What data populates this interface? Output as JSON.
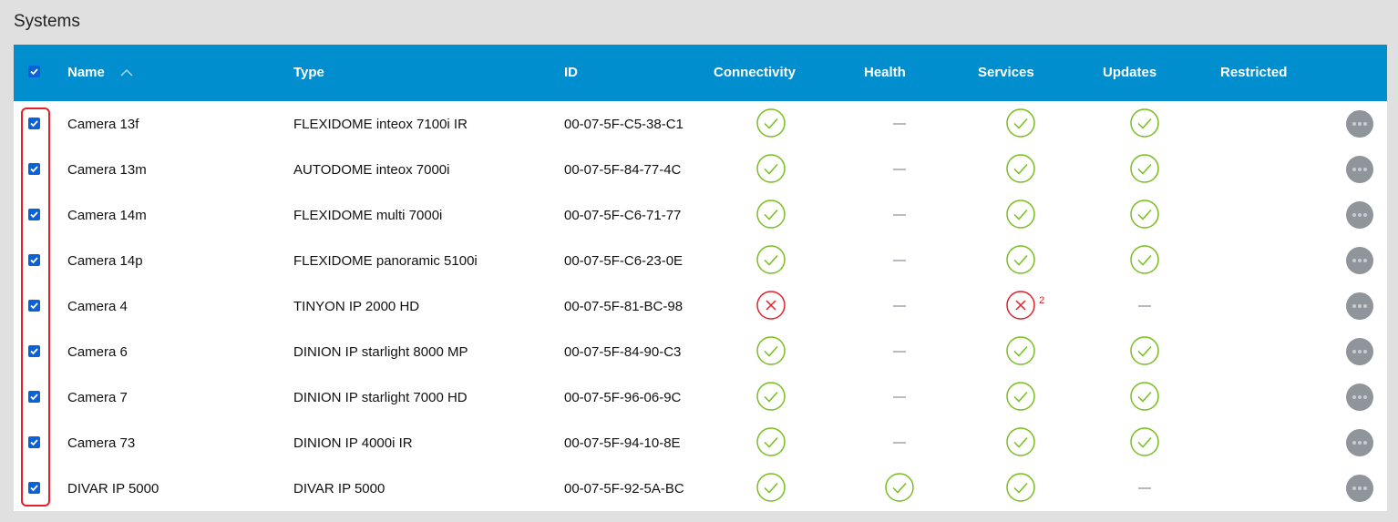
{
  "title": "Systems",
  "header": {
    "name": "Name",
    "type": "Type",
    "id": "ID",
    "connectivity": "Connectivity",
    "health": "Health",
    "services": "Services",
    "updates": "Updates",
    "restricted": "Restricted",
    "sort": "ascending",
    "select_all": true
  },
  "colors": {
    "header": "#008ecf",
    "ok": "#78be20",
    "error": "#e3202a"
  },
  "rows": [
    {
      "name": "Camera 13f",
      "type": "FLEXIDOME inteox 7100i IR",
      "id": "00-07-5F-C5-38-C1",
      "connectivity": "ok",
      "health": "none",
      "services": "ok",
      "updates": "ok",
      "checked": true
    },
    {
      "name": "Camera 13m",
      "type": "AUTODOME inteox 7000i",
      "id": "00-07-5F-84-77-4C",
      "connectivity": "ok",
      "health": "none",
      "services": "ok",
      "updates": "ok",
      "checked": true
    },
    {
      "name": "Camera 14m",
      "type": "FLEXIDOME multi 7000i",
      "id": "00-07-5F-C6-71-77",
      "connectivity": "ok",
      "health": "none",
      "services": "ok",
      "updates": "ok",
      "checked": true
    },
    {
      "name": "Camera 14p",
      "type": "FLEXIDOME panoramic 5100i",
      "id": "00-07-5F-C6-23-0E",
      "connectivity": "ok",
      "health": "none",
      "services": "ok",
      "updates": "ok",
      "checked": true
    },
    {
      "name": "Camera 4",
      "type": "TINYON IP 2000 HD",
      "id": "00-07-5F-81-BC-98",
      "connectivity": "error",
      "health": "none",
      "services": "error",
      "services_count": "2",
      "updates": "none",
      "checked": true
    },
    {
      "name": "Camera 6",
      "type": "DINION IP starlight 8000 MP",
      "id": "00-07-5F-84-90-C3",
      "connectivity": "ok",
      "health": "none",
      "services": "ok",
      "updates": "ok",
      "checked": true
    },
    {
      "name": "Camera 7",
      "type": "DINION IP starlight 7000 HD",
      "id": "00-07-5F-96-06-9C",
      "connectivity": "ok",
      "health": "none",
      "services": "ok",
      "updates": "ok",
      "checked": true
    },
    {
      "name": "Camera 73",
      "type": "DINION IP 4000i IR",
      "id": "00-07-5F-94-10-8E",
      "connectivity": "ok",
      "health": "none",
      "services": "ok",
      "updates": "ok",
      "checked": true
    },
    {
      "name": "DIVAR IP 5000",
      "type": "DIVAR IP 5000",
      "id": "00-07-5F-92-5A-BC",
      "connectivity": "ok",
      "health": "ok",
      "services": "ok",
      "updates": "none",
      "checked": true
    }
  ]
}
